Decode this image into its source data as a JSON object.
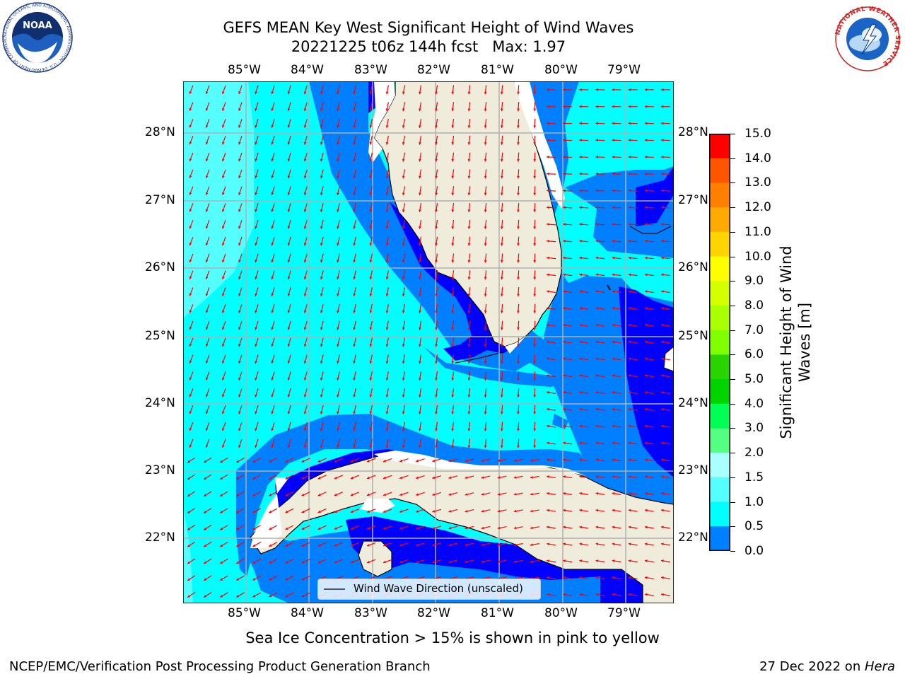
{
  "title": {
    "line1": "GEFS MEAN Key West Significant Height of Wind Waves",
    "line2": "20221225 t06z 144h fcst   Max: 1.97"
  },
  "map": {
    "lon_labels": [
      "85°W",
      "84°W",
      "83°W",
      "82°W",
      "81°W",
      "80°W",
      "79°W"
    ],
    "lat_labels": [
      "28°N",
      "27°N",
      "26°N",
      "25°N",
      "24°N",
      "23°N",
      "22°N"
    ],
    "legend_label": "Wind Wave Direction (unscaled)",
    "arrow_color": "#ff0000",
    "land_color": "#efecdc"
  },
  "colorbar": {
    "label": "Significant Height of Wind Waves [m]",
    "label_line1": "Significant Height of Wind",
    "label_line2": "Waves [m]",
    "ticks": [
      "15.0",
      "14.0",
      "13.0",
      "12.0",
      "11.0",
      "10.0",
      "9.0",
      "8.0",
      "7.0",
      "6.0",
      "5.0",
      "4.0",
      "3.0",
      "2.0",
      "1.5",
      "1.0",
      "0.5",
      "0.0"
    ],
    "colors_top_to_bottom": [
      "#ff0000",
      "#ff2a00",
      "#ff5500",
      "#ff8000",
      "#ffaa00",
      "#ffd400",
      "#ffff00",
      "#d4ff00",
      "#aaff00",
      "#80ff00",
      "#2ad400",
      "#00d400",
      "#00ff55",
      "#55ff80",
      "#aaffff",
      "#55ffff",
      "#00ffff",
      "#0080ff",
      "#0000ff"
    ]
  },
  "sea_ice_note": "Sea Ice Concentration > 15% is shown in pink to yellow",
  "footer": {
    "left": "NCEP/EMC/Verification Post Processing Product Generation Branch",
    "right_prefix": "27 Dec 2022 on ",
    "right_host": "Hera"
  },
  "logos": {
    "noaa_text": "NOAA",
    "noaa_ring": "NATIONAL OCEANIC AND ATMOSPHERIC ADMINISTRATION · U.S. DEPARTMENT OF COMMERCE",
    "nws_ring": "NATIONAL WEATHER SERVICE"
  }
}
